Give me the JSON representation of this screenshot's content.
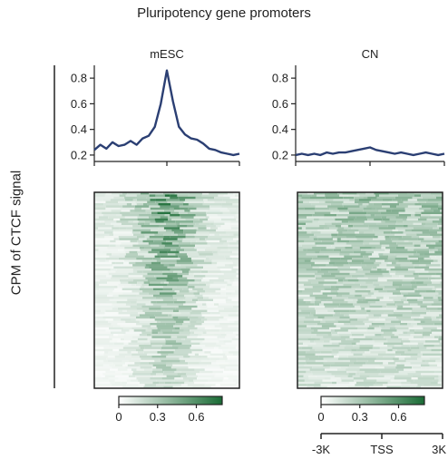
{
  "chart_data": {
    "type": "line",
    "title": "Pluripotency gene promoters",
    "ylabel": "CPM of CTCF signal",
    "x_ticks": [
      "-3K",
      "TSS",
      "3K"
    ],
    "ylim": [
      0.15,
      0.9
    ],
    "yticks": [
      "0.8",
      "0.6",
      "0.4",
      "0.2"
    ],
    "panels": [
      {
        "name": "mESC",
        "x": [
          -3000,
          -2750,
          -2500,
          -2250,
          -2000,
          -1750,
          -1500,
          -1250,
          -1000,
          -750,
          -500,
          -250,
          0,
          250,
          500,
          750,
          1000,
          1250,
          1500,
          1750,
          2000,
          2250,
          2500,
          2750,
          3000
        ],
        "values": [
          0.24,
          0.28,
          0.25,
          0.3,
          0.27,
          0.28,
          0.31,
          0.28,
          0.33,
          0.35,
          0.42,
          0.6,
          0.86,
          0.62,
          0.42,
          0.36,
          0.33,
          0.32,
          0.29,
          0.25,
          0.24,
          0.22,
          0.21,
          0.2,
          0.21
        ]
      },
      {
        "name": "CN",
        "x": [
          -3000,
          -2750,
          -2500,
          -2250,
          -2000,
          -1750,
          -1500,
          -1250,
          -1000,
          -750,
          -500,
          -250,
          0,
          250,
          500,
          750,
          1000,
          1250,
          1500,
          1750,
          2000,
          2250,
          2500,
          2750,
          3000
        ],
        "values": [
          0.2,
          0.21,
          0.2,
          0.21,
          0.2,
          0.22,
          0.21,
          0.22,
          0.22,
          0.23,
          0.24,
          0.25,
          0.26,
          0.24,
          0.23,
          0.22,
          0.21,
          0.22,
          0.21,
          0.2,
          0.21,
          0.22,
          0.21,
          0.2,
          0.21
        ]
      }
    ],
    "heatmap": {
      "colorscale": [
        "#ffffff",
        "#1a6b35"
      ],
      "colorbar_ticks": [
        "0",
        "0.3",
        "0.6"
      ],
      "colorbar_range": [
        0,
        0.8
      ]
    },
    "line_color": "#2b3f73"
  }
}
